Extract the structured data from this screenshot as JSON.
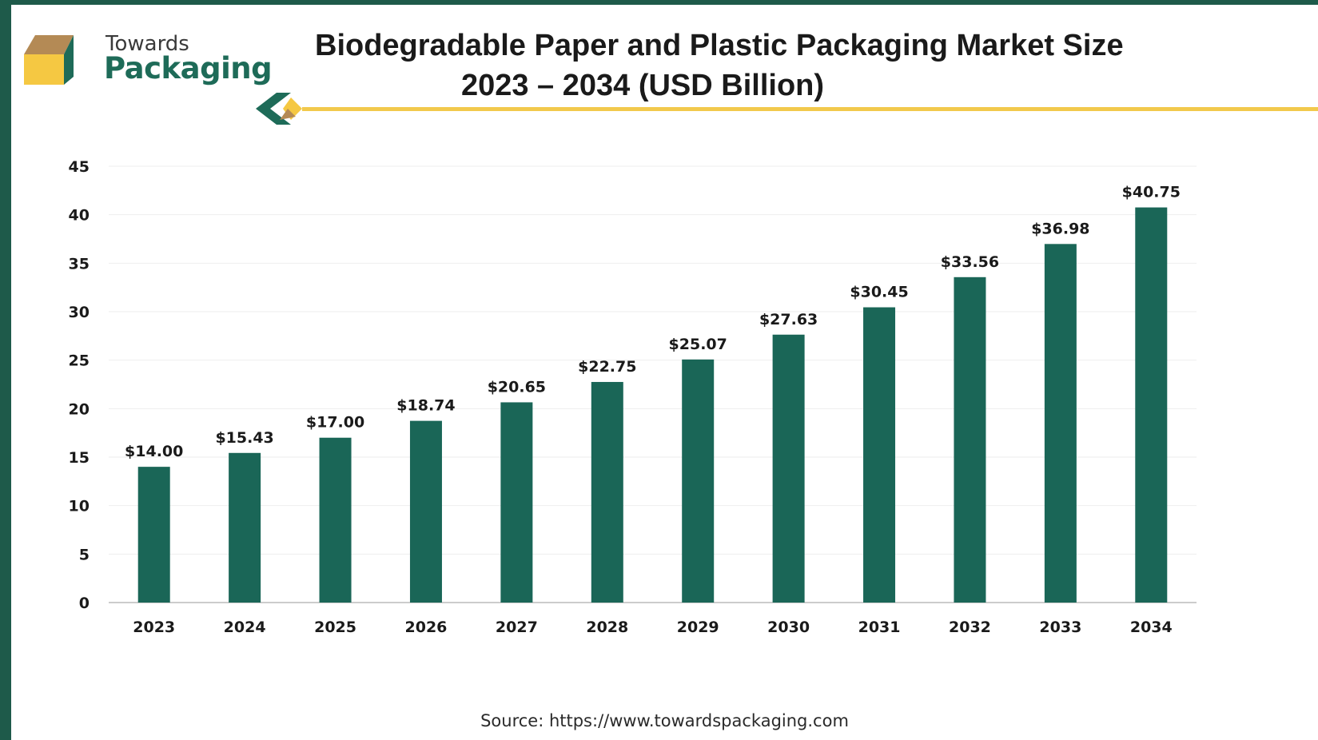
{
  "logo": {
    "line1": "Towards",
    "line2": "Packaging"
  },
  "header": {
    "title_line1": "Biodegradable Paper and Plastic Packaging Market Size",
    "title_line2": "2023 – 2034 (USD Billion)"
  },
  "source": "Source: https://www.towardspackaging.com",
  "colors": {
    "bar": "#1a6657",
    "accent": "#f2c94c",
    "frame": "#1e5a4a"
  },
  "chart_data": {
    "type": "bar",
    "title": "Biodegradable Paper and Plastic Packaging Market Size 2023 – 2034 (USD Billion)",
    "categories": [
      "2023",
      "2024",
      "2025",
      "2026",
      "2027",
      "2028",
      "2029",
      "2030",
      "2031",
      "2032",
      "2033",
      "2034"
    ],
    "values": [
      14.0,
      15.43,
      17.0,
      18.74,
      20.65,
      22.75,
      25.07,
      27.63,
      30.45,
      33.56,
      36.98,
      40.75
    ],
    "data_labels": [
      "$14.00",
      "$15.43",
      "$17.00",
      "$18.74",
      "$20.65",
      "$22.75",
      "$25.07",
      "$27.63",
      "$30.45",
      "$33.56",
      "$36.98",
      "$40.75"
    ],
    "yticks": [
      "0",
      "5",
      "10",
      "15",
      "20",
      "25",
      "30",
      "35",
      "40",
      "45"
    ],
    "ylim": [
      0,
      45
    ],
    "xlabel": "",
    "ylabel": "",
    "grid": true,
    "legend": "none"
  }
}
